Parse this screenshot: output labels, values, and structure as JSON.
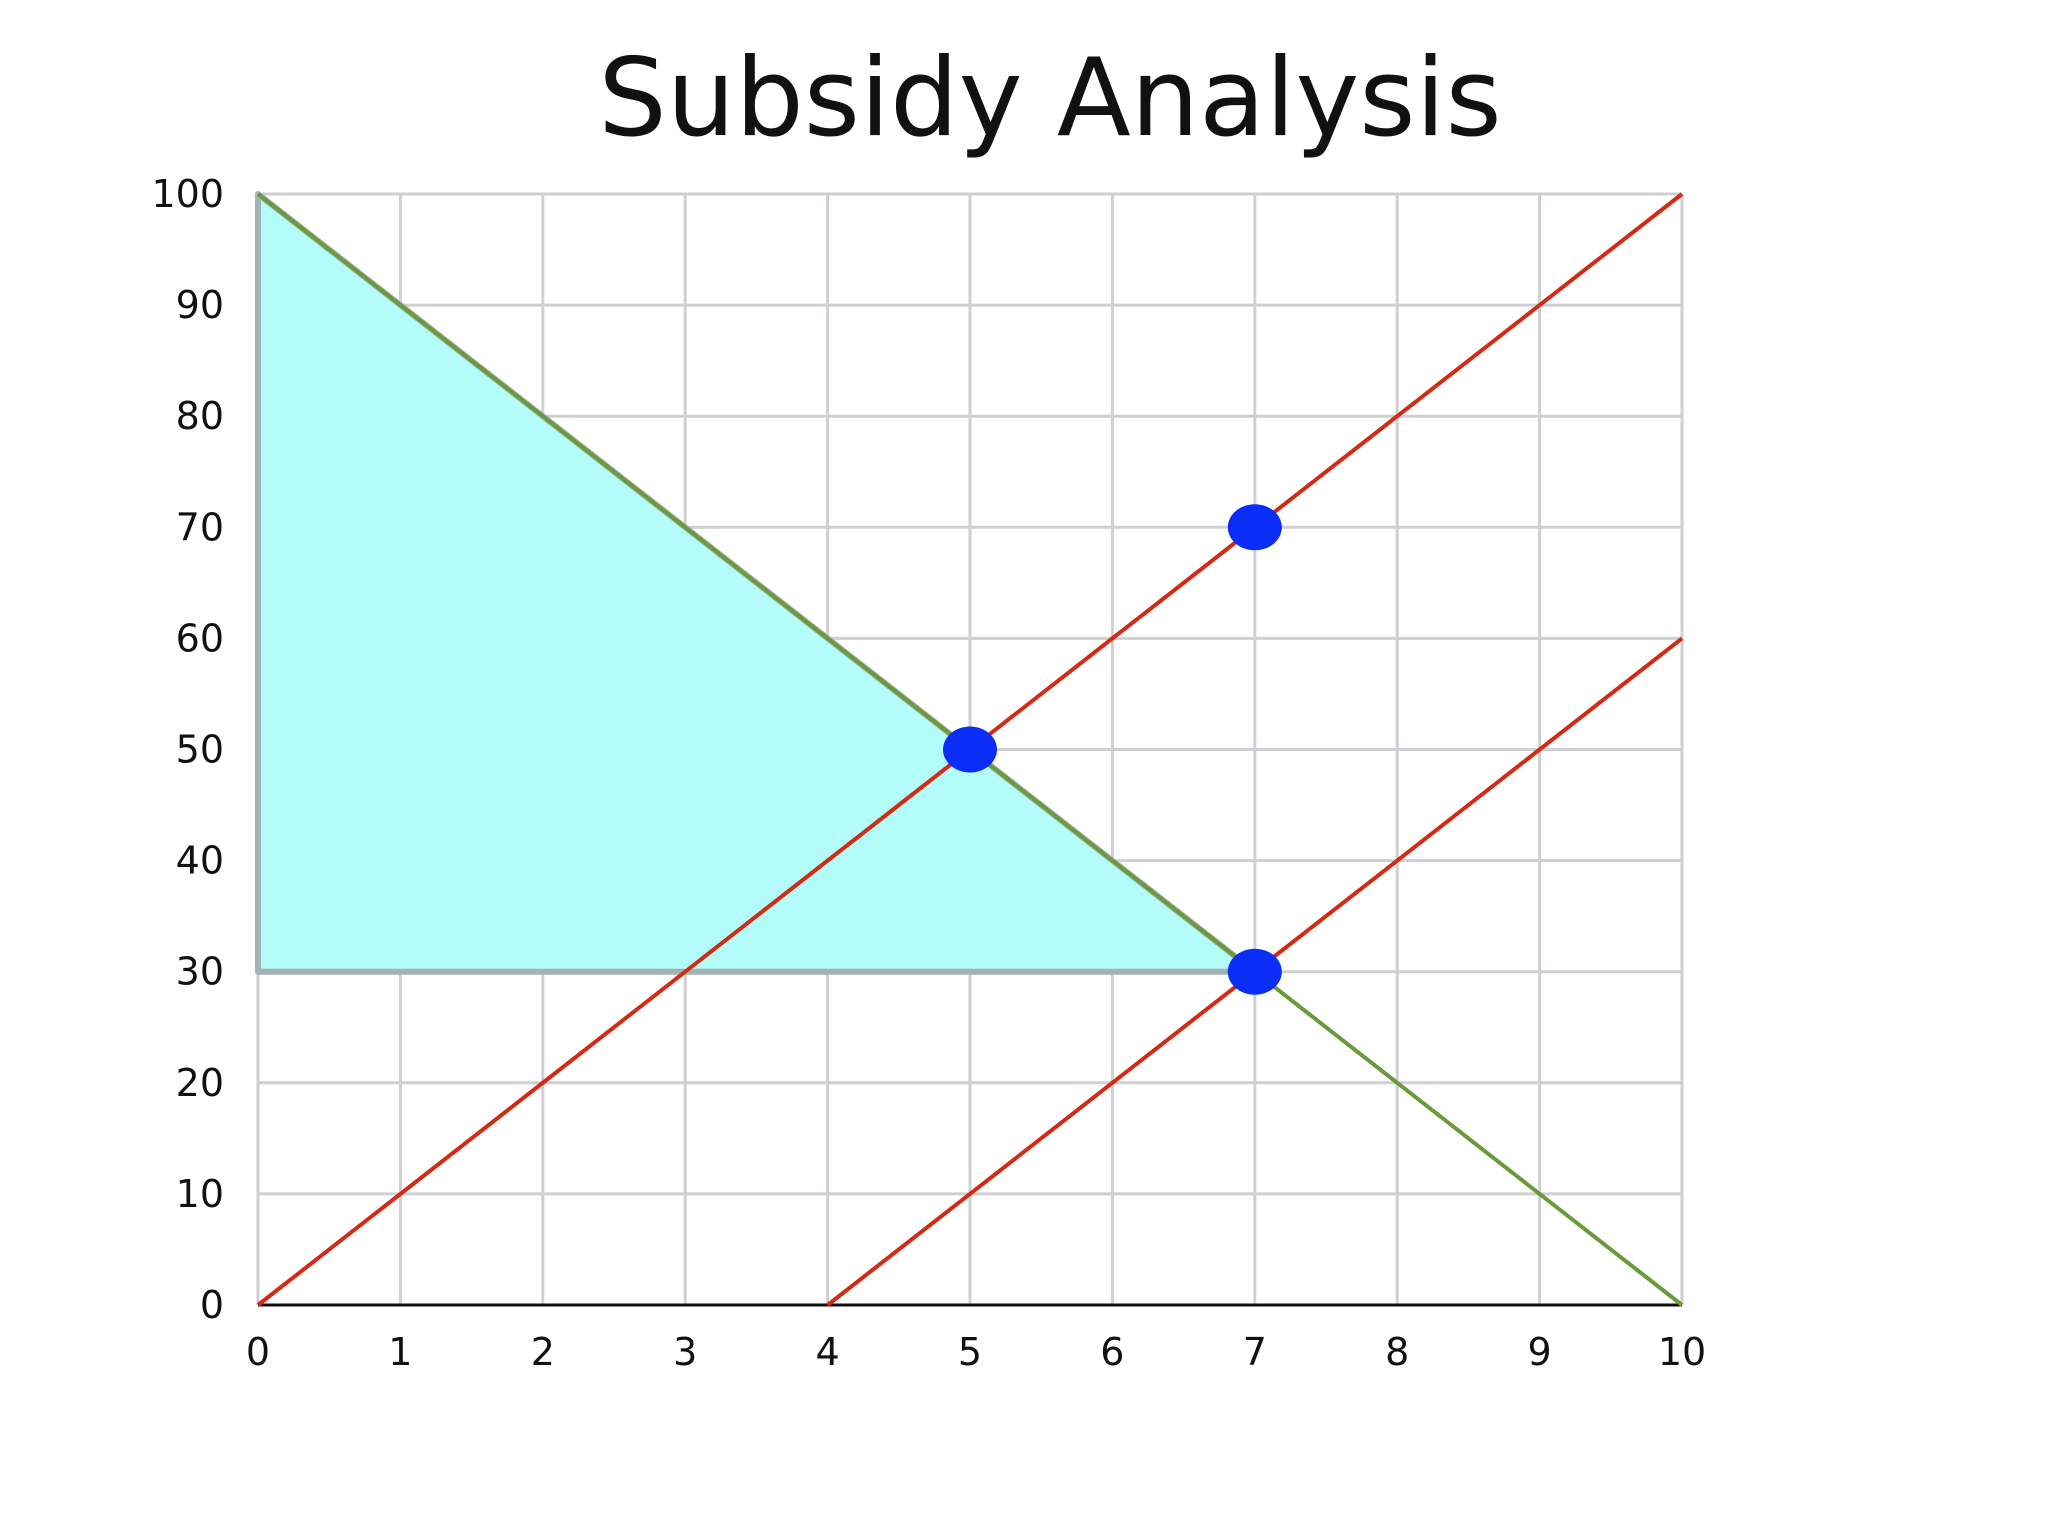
{
  "chart_data": {
    "type": "line",
    "title": "Subsidy Analysis",
    "xlim": [
      0,
      10
    ],
    "ylim": [
      0,
      100
    ],
    "x_ticks": [
      "0",
      "1",
      "2",
      "3",
      "4",
      "5",
      "6",
      "7",
      "8",
      "9",
      "10"
    ],
    "y_ticks": [
      "0",
      "10",
      "20",
      "30",
      "40",
      "50",
      "60",
      "70",
      "80",
      "90",
      "100"
    ],
    "grid": true,
    "series": [
      {
        "color": "#6a9a3a",
        "x": [
          0,
          10
        ],
        "y": [
          100,
          0
        ]
      },
      {
        "color": "#d42a14",
        "x": [
          0,
          10
        ],
        "y": [
          0,
          100
        ]
      },
      {
        "color": "#d42a14",
        "x": [
          4,
          10
        ],
        "y": [
          0,
          60
        ]
      }
    ],
    "shaded_region": {
      "color": "#b4fcfa",
      "x": [
        0,
        7,
        0
      ],
      "y": [
        100,
        30,
        30
      ]
    },
    "points": [
      {
        "x": 5,
        "y": 50,
        "color": "#0a2ef5"
      },
      {
        "x": 7,
        "y": 70,
        "color": "#0a2ef5"
      },
      {
        "x": 7,
        "y": 30,
        "color": "#0a2ef5"
      }
    ]
  }
}
